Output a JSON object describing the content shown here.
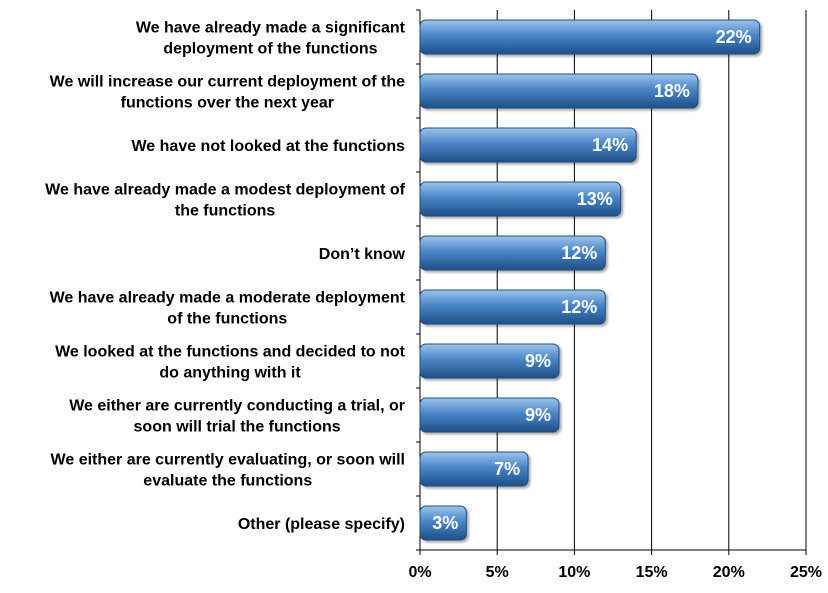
{
  "chart_data": {
    "type": "bar",
    "orientation": "horizontal",
    "categories": [
      "We have already made a significant deployment of the functions",
      "We will increase our current deployment of the functions over the next year",
      "We have not looked at the functions",
      "We have already made a modest deployment of the functions",
      "Don’t know",
      "We have already made a moderate deployment of the functions",
      "We looked at the functions and decided to not do anything with it",
      "We either are currently conducting a trial, or soon will trial the functions",
      "We either are currently evaluating, or soon will evaluate the functions",
      "Other (please specify)"
    ],
    "category_label_lines": [
      [
        "We have already made a significant",
        "deployment of the functions"
      ],
      [
        "We will increase our current deployment of the",
        "functions over the next year"
      ],
      [
        "We have not looked at the functions"
      ],
      [
        "We have already made a modest deployment of",
        "the functions"
      ],
      [
        "Don’t know"
      ],
      [
        "We have already made a moderate deployment",
        "of the functions"
      ],
      [
        "We looked at the functions and decided to not",
        "do anything with it"
      ],
      [
        "We either are currently conducting a trial, or",
        "soon will trial the functions"
      ],
      [
        "We either are currently evaluating, or soon will",
        "evaluate the functions"
      ],
      [
        "Other (please specify)"
      ]
    ],
    "values": [
      22,
      18,
      14,
      13,
      12,
      12,
      9,
      9,
      7,
      3
    ],
    "value_labels": [
      "22%",
      "18%",
      "14%",
      "13%",
      "12%",
      "12%",
      "9%",
      "9%",
      "7%",
      "3%"
    ],
    "xlim": [
      0,
      25
    ],
    "xticks": [
      0,
      5,
      10,
      15,
      20,
      25
    ],
    "xtick_labels": [
      "0%",
      "5%",
      "10%",
      "15%",
      "20%",
      "25%"
    ],
    "title": "",
    "xlabel": "",
    "ylabel": "",
    "grid": "vertical",
    "legend": "none",
    "colors": {
      "bar": "#4a86c8",
      "bar_light": "#9ec3ea",
      "bar_dark": "#1f4f86",
      "grid": "#000000"
    }
  }
}
